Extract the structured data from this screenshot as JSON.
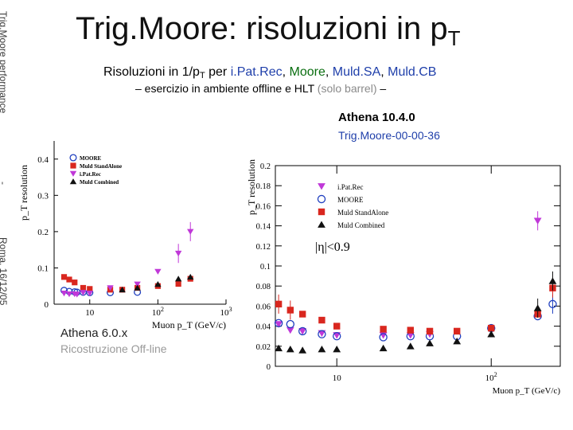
{
  "slide": {
    "title": "Trig.Moore: risoluzioni in p",
    "title_sub": "T",
    "subtitle_pre": "Risoluzioni in 1/p",
    "subtitle_sub": "T",
    "subtitle_per": " per ",
    "subtitle_ipat": "i.Pat.Rec",
    "subtitle_sep1": ", ",
    "subtitle_moore": "Moore",
    "subtitle_sep2": ", ",
    "subtitle_sa": "Muld.SA",
    "subtitle_sep3": ", ",
    "subtitle_cb": "Muld.CB",
    "bullet_main": "– esercizio in ambiente offline e HLT ",
    "bullet_gray": "(solo barrel)",
    "bullet_end": " –",
    "athena_new": "Athena 10.4.0",
    "trig_tag": "Trig.Moore-00-00-36",
    "athena_old": "Athena 6.0.x",
    "athena_old_note": "Ricostruzione Off-line",
    "side_top": "Trig.Moore performance",
    "side_dash": "-",
    "side_bottom": "Roma, 16/12/05"
  },
  "chart_data": [
    {
      "type": "scatter",
      "title": "",
      "xlabel": "Muon p_T (GeV/c)",
      "ylabel": "p_T resolution",
      "xscale": "log",
      "xlim": [
        3,
        1000
      ],
      "ylim": [
        0,
        0.45
      ],
      "xticks": [
        "10",
        "10^2",
        "10^3"
      ],
      "yticks": [
        "0",
        "0.1",
        "0.2",
        "0.3",
        "0.4"
      ],
      "legend_position": "top-left",
      "series": [
        {
          "name": "MOORE",
          "marker": "open-circle",
          "color": "#1f3fbf",
          "x": [
            4.2,
            5,
            6,
            6.5,
            8,
            10,
            20,
            50
          ],
          "y": [
            0.038,
            0.035,
            0.034,
            0.033,
            0.033,
            0.032,
            0.032,
            0.033
          ]
        },
        {
          "name": "Muld StandAlone",
          "marker": "square",
          "color": "#d9271f",
          "x": [
            4.2,
            5,
            6,
            8,
            10,
            20,
            30,
            50,
            100,
            200,
            300
          ],
          "y": [
            0.075,
            0.068,
            0.06,
            0.045,
            0.042,
            0.04,
            0.04,
            0.045,
            0.05,
            0.056,
            0.07
          ]
        },
        {
          "name": "i.Pat.Rec",
          "marker": "triangle-down",
          "color": "#c038d8",
          "x": [
            4.2,
            5,
            6,
            6.5,
            8,
            10,
            20,
            50,
            100,
            200,
            300
          ],
          "y": [
            0.03,
            0.028,
            0.028,
            0.027,
            0.032,
            0.03,
            0.045,
            0.055,
            0.09,
            0.14,
            0.2
          ]
        },
        {
          "name": "Muld Combined",
          "marker": "triangle-up",
          "color": "#111111",
          "x": [
            30,
            50,
            100,
            200,
            300
          ],
          "y": [
            0.04,
            0.045,
            0.055,
            0.07,
            0.075
          ]
        }
      ]
    },
    {
      "type": "scatter",
      "title": "",
      "xlabel": "Muon p_T (GeV/c)",
      "ylabel": "p_T resolution",
      "xscale": "log",
      "xlim": [
        4,
        280
      ],
      "ylim": [
        0,
        0.2
      ],
      "xticks": [
        "10",
        "10^2"
      ],
      "yticks": [
        "0",
        "0.02",
        "0.04",
        "0.06",
        "0.08",
        "0.1",
        "0.12",
        "0.14",
        "0.16",
        "0.18",
        "0.2"
      ],
      "legend_position": "top-left",
      "annotation": "|η|<0.9",
      "series": [
        {
          "name": "i.Pat.Rec",
          "marker": "triangle-down",
          "color": "#c038d8",
          "x": [
            4.2,
            5,
            6,
            8,
            10,
            20,
            30,
            40,
            100,
            200
          ],
          "y": [
            0.042,
            0.036,
            0.035,
            0.033,
            0.031,
            0.031,
            0.031,
            0.032,
            0.036,
            0.145
          ]
        },
        {
          "name": "MOORE",
          "marker": "open-circle",
          "color": "#1f3fbf",
          "x": [
            4.2,
            5,
            6,
            8,
            10,
            20,
            30,
            40,
            60,
            100,
            200,
            250
          ],
          "y": [
            0.043,
            0.042,
            0.035,
            0.032,
            0.03,
            0.029,
            0.03,
            0.03,
            0.03,
            0.038,
            0.05,
            0.062
          ]
        },
        {
          "name": "Muld StandAlone",
          "marker": "square",
          "color": "#d9271f",
          "x": [
            4.2,
            5,
            6,
            8,
            10,
            20,
            30,
            40,
            60,
            100,
            200,
            250
          ],
          "y": [
            0.062,
            0.056,
            0.052,
            0.046,
            0.04,
            0.037,
            0.036,
            0.035,
            0.035,
            0.038,
            0.052,
            0.078
          ]
        },
        {
          "name": "Muld Combined",
          "marker": "triangle-up",
          "color": "#111111",
          "x": [
            4.2,
            5,
            6,
            8,
            10,
            20,
            30,
            40,
            60,
            100,
            200,
            250
          ],
          "y": [
            0.018,
            0.017,
            0.016,
            0.017,
            0.017,
            0.018,
            0.02,
            0.023,
            0.025,
            0.032,
            0.058,
            0.085
          ]
        }
      ]
    }
  ]
}
